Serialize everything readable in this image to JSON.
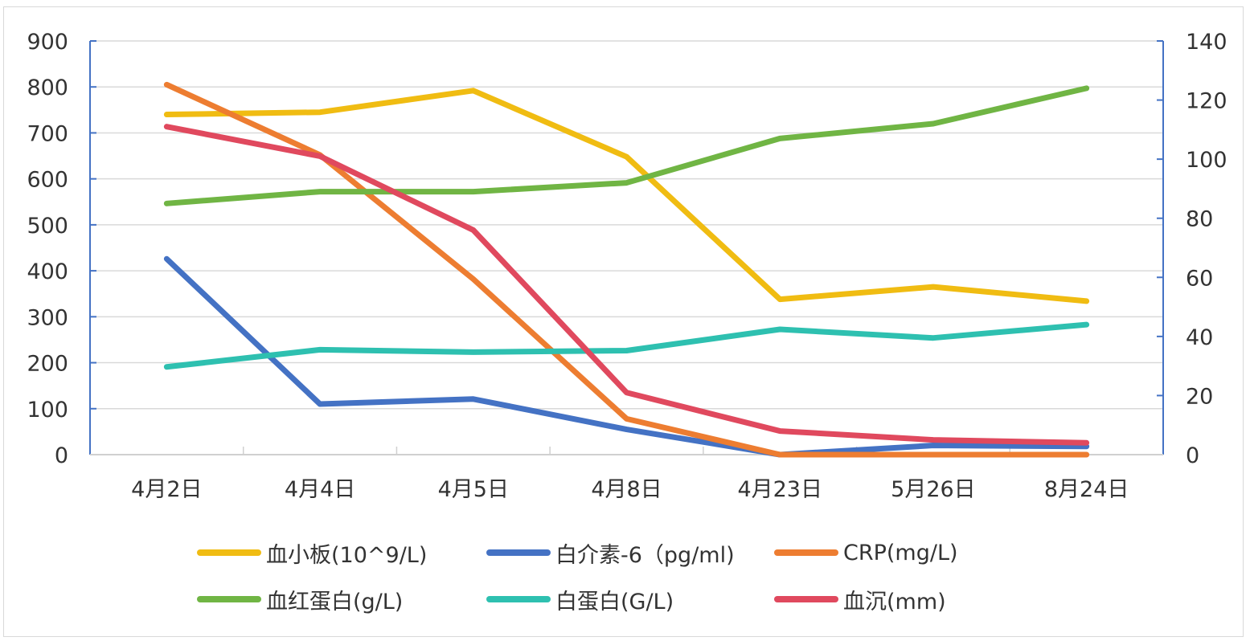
{
  "chart_data": {
    "type": "line",
    "categories": [
      "4月2日",
      "4月4日",
      "4月5日",
      "4月8日",
      "4月23日",
      "5月26日",
      "8月24日"
    ],
    "y_left": {
      "min": 0,
      "max": 900,
      "ticks": [
        "0",
        "100",
        "200",
        "300",
        "400",
        "500",
        "600",
        "700",
        "800",
        "900"
      ]
    },
    "y_right": {
      "min": 0,
      "max": 140,
      "ticks": [
        "0",
        "20",
        "40",
        "60",
        "80",
        "100",
        "120",
        "140"
      ]
    },
    "grid": true,
    "legend_position": "bottom",
    "series": [
      {
        "name": "血小板(10^9/L)",
        "axis": "left",
        "color": "#F0BC12",
        "values": [
          740,
          745,
          792,
          648,
          338,
          365,
          334
        ]
      },
      {
        "name": "白介素-6（pg/ml)",
        "axis": "left",
        "color": "#4472C4",
        "values": [
          426,
          110,
          121,
          55,
          0,
          20,
          18
        ]
      },
      {
        "name": "CRP(mg/L)",
        "axis": "left",
        "color": "#ED7D31",
        "values": [
          805,
          652,
          382,
          78,
          0,
          0,
          0
        ]
      },
      {
        "name": "血红蛋白(g/L)",
        "axis": "right",
        "color": "#70B544",
        "values": [
          85,
          89,
          89,
          92,
          107,
          112,
          124
        ]
      },
      {
        "name": "白蛋白(G/L)",
        "axis": "right",
        "color": "#2EC0B0",
        "values": [
          29.7,
          35.5,
          34.7,
          35.2,
          42.4,
          39.5,
          44
        ]
      },
      {
        "name": "血沉(mm)",
        "axis": "right",
        "color": "#E0495E",
        "values": [
          111,
          101,
          76,
          21,
          8,
          5,
          4
        ]
      }
    ]
  }
}
